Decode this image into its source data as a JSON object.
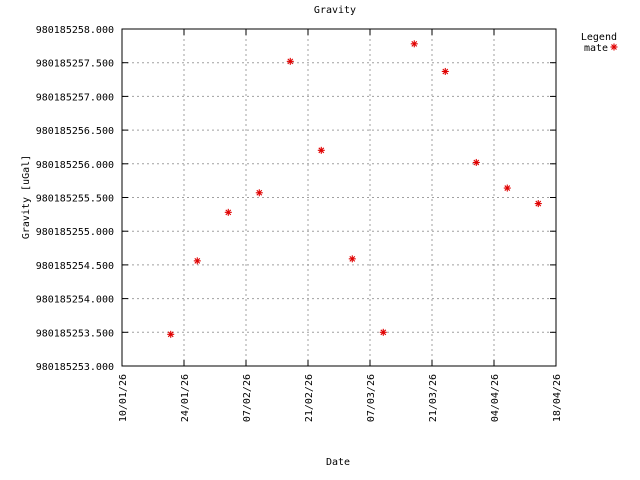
{
  "chart_data": {
    "type": "scatter",
    "title": "Gravity",
    "xlabel": "Date",
    "ylabel": "Gravity [uGal]",
    "legend": {
      "title": "Legend",
      "position": "top-right"
    },
    "grid": true,
    "series": [
      {
        "name": "mate",
        "color": "#e00000",
        "marker": "asterisk",
        "points": [
          {
            "x": "2026-01-21",
            "y": 980185253.47
          },
          {
            "x": "2026-01-27",
            "y": 980185254.56
          },
          {
            "x": "2026-02-03",
            "y": 980185255.28
          },
          {
            "x": "2026-02-10",
            "y": 980185255.57
          },
          {
            "x": "2026-02-17",
            "y": 980185257.52
          },
          {
            "x": "2026-02-24",
            "y": 980185256.2
          },
          {
            "x": "2026-03-03",
            "y": 980185254.59
          },
          {
            "x": "2026-03-10",
            "y": 980185253.5
          },
          {
            "x": "2026-03-17",
            "y": 980185257.78
          },
          {
            "x": "2026-03-24",
            "y": 980185257.37
          },
          {
            "x": "2026-03-31",
            "y": 980185256.02
          },
          {
            "x": "2026-04-07",
            "y": 980185255.64
          },
          {
            "x": "2026-04-14",
            "y": 980185255.41
          }
        ]
      }
    ],
    "xlim": [
      "2026-01-10",
      "2026-04-18"
    ],
    "ylim": [
      980185253.0,
      980185258.0
    ],
    "x_ticks": [
      {
        "value": "2026-01-10",
        "label": "10/01/26"
      },
      {
        "value": "2026-01-24",
        "label": "24/01/26"
      },
      {
        "value": "2026-02-07",
        "label": "07/02/26"
      },
      {
        "value": "2026-02-21",
        "label": "21/02/26"
      },
      {
        "value": "2026-03-07",
        "label": "07/03/26"
      },
      {
        "value": "2026-03-21",
        "label": "21/03/26"
      },
      {
        "value": "2026-04-04",
        "label": "04/04/26"
      },
      {
        "value": "2026-04-18",
        "label": "18/04/26"
      }
    ],
    "y_ticks": [
      {
        "value": 980185253.0,
        "label": "980185253.000"
      },
      {
        "value": 980185253.5,
        "label": "980185253.500"
      },
      {
        "value": 980185254.0,
        "label": "980185254.000"
      },
      {
        "value": 980185254.5,
        "label": "980185254.500"
      },
      {
        "value": 980185255.0,
        "label": "980185255.000"
      },
      {
        "value": 980185255.5,
        "label": "980185255.500"
      },
      {
        "value": 980185256.0,
        "label": "980185256.000"
      },
      {
        "value": 980185256.5,
        "label": "980185256.500"
      },
      {
        "value": 980185257.0,
        "label": "980185257.000"
      },
      {
        "value": 980185257.5,
        "label": "980185257.500"
      },
      {
        "value": 980185258.0,
        "label": "980185258.000"
      }
    ]
  }
}
